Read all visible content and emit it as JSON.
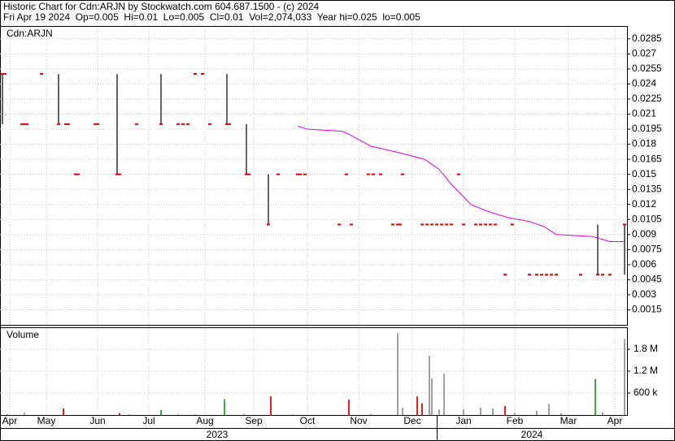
{
  "chart_data": [
    {
      "type": "stock",
      "title": "Historic Chart for Cdn:ARJN by Stockwatch.com 604.687.1500 - (c) 2024",
      "subtitle": "Fri Apr 19 2024  Op=0.005  Hi=0.01  Lo=0.005  Cl=0.01  Vol=2,074,033  Year hi=0.025  lo=0.005",
      "label": "Cdn:ARJN",
      "xlim": [
        0,
        257
      ],
      "ylim": [
        0,
        0.0297
      ],
      "yticks": [
        0.0015,
        0.003,
        0.0045,
        0.006,
        0.0075,
        0.009,
        0.0105,
        0.012,
        0.0135,
        0.015,
        0.0165,
        0.018,
        0.0195,
        0.021,
        0.0225,
        0.024,
        0.0255,
        0.027,
        0.0285
      ],
      "grid": true,
      "close_color": "#e00000",
      "range_color": "#000000",
      "x": [
        1,
        2,
        9,
        10,
        11,
        17,
        24,
        27,
        28,
        31,
        32,
        39,
        40,
        48,
        49,
        56,
        66,
        73,
        75,
        77,
        80,
        83,
        86,
        93,
        94,
        101,
        102,
        110,
        114,
        122,
        123,
        125,
        139,
        142,
        144,
        151,
        153,
        156,
        161,
        163,
        164,
        165,
        173,
        175,
        177,
        179,
        181,
        183,
        185,
        188,
        190,
        195,
        197,
        199,
        201,
        203,
        207,
        210,
        217,
        220,
        222,
        224,
        226,
        228,
        238,
        245,
        247,
        250,
        256
      ],
      "close": [
        0.025,
        0.025,
        0.02,
        0.02,
        0.02,
        0.025,
        0.02,
        0.02,
        0.02,
        0.015,
        0.015,
        0.02,
        0.02,
        0.015,
        0.015,
        0.02,
        0.02,
        0.02,
        0.02,
        0.02,
        0.025,
        0.025,
        0.02,
        0.02,
        0.02,
        0.015,
        0.015,
        0.01,
        0.015,
        0.015,
        0.015,
        0.015,
        0.01,
        0.015,
        0.01,
        0.015,
        0.015,
        0.015,
        0.01,
        0.01,
        0.01,
        0.015,
        0.01,
        0.01,
        0.01,
        0.01,
        0.01,
        0.01,
        0.01,
        0.015,
        0.01,
        0.01,
        0.01,
        0.01,
        0.01,
        0.01,
        0.005,
        0.01,
        0.005,
        0.005,
        0.005,
        0.005,
        0.005,
        0.005,
        0.005,
        0.005,
        0.005,
        0.005,
        0.01
      ],
      "high": [
        0.025,
        0.025,
        0.02,
        0.02,
        0.02,
        0.025,
        0.025,
        0.02,
        0.02,
        0.015,
        0.015,
        0.02,
        0.02,
        0.025,
        0.015,
        0.02,
        0.025,
        0.02,
        0.02,
        0.02,
        0.025,
        0.025,
        0.02,
        0.025,
        0.02,
        0.02,
        0.015,
        0.015,
        0.015,
        0.015,
        0.015,
        0.015,
        0.01,
        0.015,
        0.01,
        0.015,
        0.015,
        0.015,
        0.01,
        0.01,
        0.01,
        0.015,
        0.01,
        0.01,
        0.01,
        0.01,
        0.01,
        0.01,
        0.01,
        0.015,
        0.01,
        0.01,
        0.01,
        0.01,
        0.01,
        0.01,
        0.005,
        0.01,
        0.005,
        0.005,
        0.005,
        0.005,
        0.005,
        0.005,
        0.005,
        0.01,
        0.005,
        0.005,
        0.01
      ],
      "low": [
        0.02,
        0.025,
        0.02,
        0.02,
        0.02,
        0.025,
        0.02,
        0.02,
        0.02,
        0.015,
        0.015,
        0.02,
        0.02,
        0.015,
        0.015,
        0.02,
        0.02,
        0.02,
        0.02,
        0.02,
        0.025,
        0.025,
        0.02,
        0.02,
        0.02,
        0.015,
        0.015,
        0.01,
        0.015,
        0.015,
        0.015,
        0.015,
        0.01,
        0.015,
        0.01,
        0.015,
        0.015,
        0.015,
        0.01,
        0.01,
        0.01,
        0.015,
        0.01,
        0.01,
        0.01,
        0.01,
        0.01,
        0.01,
        0.01,
        0.015,
        0.01,
        0.01,
        0.01,
        0.01,
        0.01,
        0.01,
        0.005,
        0.01,
        0.005,
        0.005,
        0.005,
        0.005,
        0.005,
        0.005,
        0.005,
        0.005,
        0.005,
        0.005,
        0.005
      ],
      "ma_color": "#e000e0",
      "ma_x": [
        122,
        126,
        140,
        143,
        152,
        163,
        174,
        180,
        185,
        193,
        200,
        208,
        217,
        223,
        228,
        243,
        250,
        256
      ],
      "ma_values": [
        0.0198,
        0.0195,
        0.0193,
        0.019,
        0.0178,
        0.0172,
        0.0165,
        0.0155,
        0.014,
        0.012,
        0.0113,
        0.0107,
        0.0103,
        0.0098,
        0.009,
        0.0088,
        0.0083,
        0.0083
      ]
    },
    {
      "type": "bar",
      "label": "Volume",
      "xlim": [
        0,
        257
      ],
      "ylim": [
        0,
        2380000
      ],
      "yticks": [
        {
          "value": 600000,
          "label": "600 k"
        },
        {
          "value": 1200000,
          "label": "1.2 M"
        },
        {
          "value": 1800000,
          "label": "1.8 M"
        }
      ],
      "xticks": [
        {
          "value": 4,
          "label": "Apr"
        },
        {
          "value": 19,
          "label": "May"
        },
        {
          "value": 40,
          "label": "Jun"
        },
        {
          "value": 61,
          "label": "Jul"
        },
        {
          "value": 84,
          "label": "Aug"
        },
        {
          "value": 104,
          "label": "Sep"
        },
        {
          "value": 126,
          "label": "Oct"
        },
        {
          "value": 147,
          "label": "Nov"
        },
        {
          "value": 169,
          "label": "Dec"
        },
        {
          "value": 190,
          "label": "Jan"
        },
        {
          "value": 211,
          "label": "Feb"
        },
        {
          "value": 233,
          "label": "Mar"
        },
        {
          "value": 252,
          "label": "Apr"
        }
      ],
      "years": [
        "2023",
        "2024"
      ],
      "grid": true,
      "x": [
        3,
        10,
        26,
        49,
        53,
        66,
        73,
        80,
        92,
        100,
        111,
        120,
        143,
        152,
        163,
        165,
        171,
        173,
        176,
        177,
        180,
        182,
        190,
        197,
        202,
        207,
        211,
        220,
        225,
        230,
        244,
        247,
        256
      ],
      "values": [
        30000,
        60000,
        180000,
        50000,
        20000,
        140000,
        20000,
        20000,
        440000,
        30000,
        510000,
        20000,
        420000,
        30000,
        2240000,
        200000,
        510000,
        320000,
        1620000,
        1000000,
        150000,
        1130000,
        150000,
        200000,
        180000,
        250000,
        60000,
        120000,
        300000,
        50000,
        990000,
        80000,
        2080000
      ],
      "colors": [
        "#a0a0a0",
        "#a0a0a0",
        "#e02020",
        "#e02020",
        "#a0a0a0",
        "#3cb043",
        "#a0a0a0",
        "#a0a0a0",
        "#3cb043",
        "#a0a0a0",
        "#e02020",
        "#a0a0a0",
        "#e02020",
        "#a0a0a0",
        "#a0a0a0",
        "#a0a0a0",
        "#e02020",
        "#e02020",
        "#a0a0a0",
        "#a0a0a0",
        "#a0a0a0",
        "#a0a0a0",
        "#a0a0a0",
        "#a0a0a0",
        "#a0a0a0",
        "#e02020",
        "#a0a0a0",
        "#a0a0a0",
        "#a0a0a0",
        "#a0a0a0",
        "#3cb043",
        "#a0a0a0",
        "#a0a0a0"
      ]
    }
  ]
}
